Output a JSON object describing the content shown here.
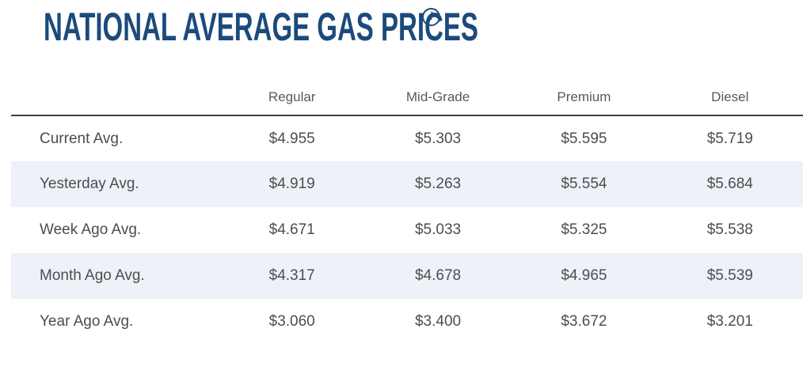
{
  "title": "NATIONAL AVERAGE GAS PRICES",
  "info_icon": {
    "glyph": "i",
    "name": "info-icon"
  },
  "colors": {
    "title_navy": "#1c4a7c",
    "header_text": "#58595b",
    "body_text": "#4d4d4f",
    "divider": "#414042",
    "alt_row_bg": "#edf2f8"
  },
  "table": {
    "columns": [
      "Regular",
      "Mid-Grade",
      "Premium",
      "Diesel"
    ],
    "rows": [
      {
        "label": "Current Avg.",
        "values": [
          "$4.955",
          "$5.303",
          "$5.595",
          "$5.719"
        ]
      },
      {
        "label": "Yesterday Avg.",
        "values": [
          "$4.919",
          "$5.263",
          "$5.554",
          "$5.684"
        ]
      },
      {
        "label": "Week Ago Avg.",
        "values": [
          "$4.671",
          "$5.033",
          "$5.325",
          "$5.538"
        ]
      },
      {
        "label": "Month Ago Avg.",
        "values": [
          "$4.317",
          "$4.678",
          "$4.965",
          "$5.539"
        ]
      },
      {
        "label": "Year Ago Avg.",
        "values": [
          "$3.060",
          "$3.400",
          "$3.672",
          "$3.201"
        ]
      }
    ]
  }
}
